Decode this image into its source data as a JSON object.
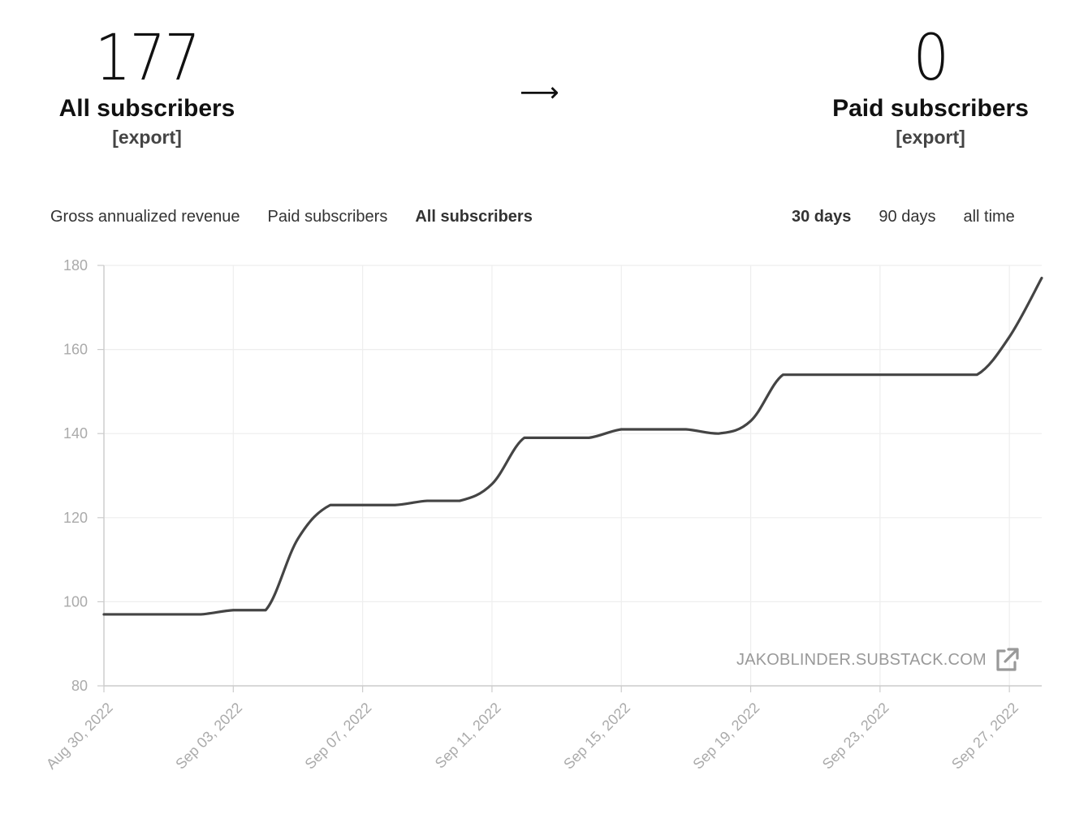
{
  "stats": {
    "all": {
      "value": "177",
      "label": "All subscribers",
      "export": "[export]"
    },
    "arrow": "⟶",
    "paid": {
      "value": "0",
      "label": "Paid subscribers",
      "export": "[export]"
    }
  },
  "metric_tabs": [
    {
      "label": "Gross annualized revenue",
      "active": false
    },
    {
      "label": "Paid subscribers",
      "active": false
    },
    {
      "label": "All subscribers",
      "active": true
    }
  ],
  "range_tabs": [
    {
      "label": "30 days",
      "active": true
    },
    {
      "label": "90 days",
      "active": false
    },
    {
      "label": "all time",
      "active": false
    }
  ],
  "watermark": {
    "text": "JAKOBLINDER.SUBSTACK.COM",
    "icon": "external-link-icon"
  },
  "colors": {
    "line": "#444444",
    "grid": "#eeeeee",
    "axis": "#cccccc",
    "tick_text": "#aaaaaa"
  },
  "chart_data": {
    "type": "line",
    "ylim": [
      80,
      180
    ],
    "yticks": [
      80,
      100,
      120,
      140,
      160,
      180
    ],
    "xlim": [
      "2022-08-30",
      "2022-09-28"
    ],
    "xticks": [
      "Aug 30, 2022",
      "Sep 03, 2022",
      "Sep 07, 2022",
      "Sep 11, 2022",
      "Sep 15, 2022",
      "Sep 19, 2022",
      "Sep 23, 2022",
      "Sep 27, 2022"
    ],
    "grid": true,
    "series": [
      {
        "x": [
          "2022-08-30",
          "2022-08-31",
          "2022-09-01",
          "2022-09-02",
          "2022-09-03",
          "2022-09-04",
          "2022-09-05",
          "2022-09-06",
          "2022-09-07",
          "2022-09-08",
          "2022-09-09",
          "2022-09-10",
          "2022-09-11",
          "2022-09-12",
          "2022-09-13",
          "2022-09-14",
          "2022-09-15",
          "2022-09-16",
          "2022-09-17",
          "2022-09-18",
          "2022-09-19",
          "2022-09-20",
          "2022-09-21",
          "2022-09-22",
          "2022-09-23",
          "2022-09-24",
          "2022-09-25",
          "2022-09-26",
          "2022-09-27",
          "2022-09-28"
        ],
        "values": [
          97,
          97,
          97,
          97,
          98,
          98,
          115,
          123,
          123,
          123,
          124,
          124,
          128,
          139,
          139,
          139,
          141,
          141,
          141,
          140,
          143,
          154,
          154,
          154,
          154,
          154,
          154,
          154,
          163,
          177
        ]
      }
    ]
  }
}
